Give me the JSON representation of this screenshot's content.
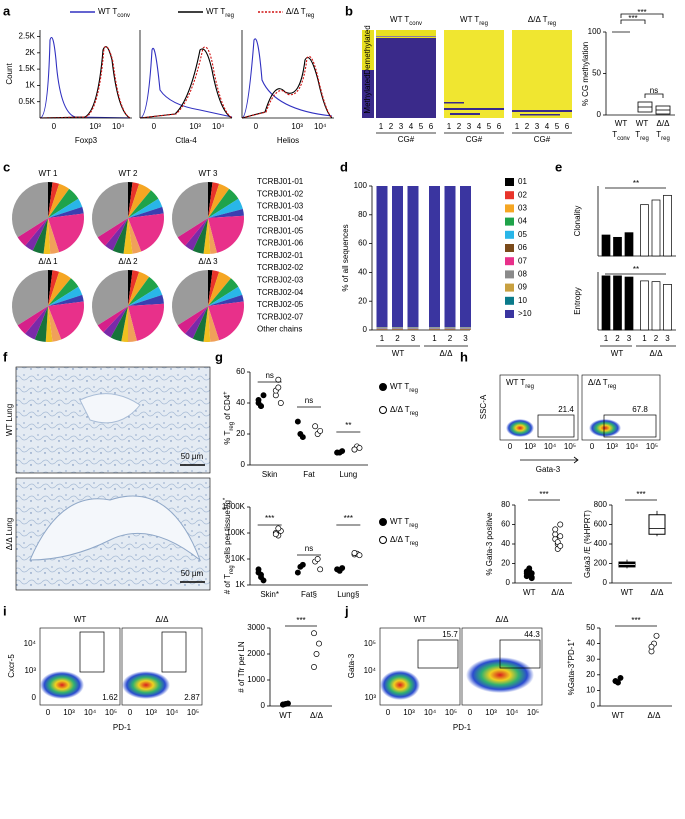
{
  "a": {
    "letter": "a",
    "legend": [
      [
        {
          "t": "WT T"
        },
        {
          "sub": "conv"
        }
      ],
      [
        {
          "t": "WT T"
        },
        {
          "sub": "reg"
        }
      ],
      [
        {
          "t": "Δ/Δ T"
        },
        {
          "sub": "reg"
        }
      ]
    ],
    "ylabel": "Count",
    "ylim": [
      0,
      2700
    ],
    "yticks": [
      {
        "value": 500,
        "label": "0.5K"
      },
      {
        "value": 1000,
        "label": "1K"
      },
      {
        "value": 1500,
        "label": "1.5K"
      },
      {
        "value": 2000,
        "label": "2K"
      },
      {
        "value": 2500,
        "label": "2.5K"
      }
    ],
    "xticks": [
      "0",
      "10³",
      "10⁴"
    ],
    "markers": [
      "Foxp3",
      "Ctla-4",
      "Helios"
    ]
  },
  "b": {
    "letter": "b",
    "titles": [
      [
        {
          "t": "WT T"
        },
        {
          "sub": "conv"
        }
      ],
      [
        {
          "t": "WT T"
        },
        {
          "sub": "reg"
        }
      ],
      [
        {
          "t": "Δ/Δ T"
        },
        {
          "sub": "reg"
        }
      ]
    ],
    "demethylated": "Demethylated",
    "methylated": "Methylated",
    "cg_numbers": [
      1,
      2,
      3,
      4,
      5,
      6
    ],
    "cg_label": "CG#",
    "ylabel": "% CG methylation",
    "ylim": [
      0,
      100
    ],
    "yticks": [
      0,
      50,
      100
    ],
    "groups": [
      {
        "line1": "WT",
        "line2": [
          {
            "t": "T"
          },
          {
            "sub": "conv"
          }
        ]
      },
      {
        "line1": "WT",
        "line2": [
          {
            "t": "T"
          },
          {
            "sub": "reg"
          }
        ]
      },
      {
        "line1": "Δ/Δ",
        "line2": [
          {
            "t": "T"
          },
          {
            "sub": "reg"
          }
        ]
      }
    ],
    "stars": [
      "***",
      "***",
      "ns"
    ]
  },
  "c": {
    "letter": "c",
    "pies": [
      {
        "title": "WT 1",
        "values": [
          2,
          3,
          5,
          6,
          4,
          3,
          22,
          4,
          3,
          5,
          4,
          5,
          34
        ]
      },
      {
        "title": "WT 2",
        "values": [
          2,
          3,
          6,
          5,
          4,
          3,
          21,
          4,
          4,
          5,
          4,
          5,
          34
        ]
      },
      {
        "title": "WT 3",
        "values": [
          2,
          3,
          5,
          6,
          5,
          3,
          22,
          3,
          3,
          5,
          4,
          5,
          34
        ]
      },
      {
        "title": "Δ/Δ 1",
        "values": [
          2,
          3,
          6,
          5,
          4,
          3,
          21,
          4,
          3,
          5,
          5,
          5,
          34
        ]
      },
      {
        "title": "Δ/Δ 2",
        "values": [
          2,
          3,
          5,
          6,
          4,
          4,
          22,
          4,
          3,
          5,
          4,
          4,
          34
        ]
      },
      {
        "title": "Δ/Δ 3",
        "values": [
          2,
          3,
          6,
          5,
          4,
          3,
          22,
          4,
          3,
          5,
          4,
          5,
          34
        ]
      }
    ],
    "legend": [
      {
        "name": "TCRBJ01-01",
        "color": "#000000"
      },
      {
        "name": "TCRBJ01-02",
        "color": "#e8342a"
      },
      {
        "name": "TCRBJ01-03",
        "color": "#f5a623"
      },
      {
        "name": "TCRBJ01-04",
        "color": "#1fa34a"
      },
      {
        "name": "TCRBJ01-05",
        "color": "#29b6e8"
      },
      {
        "name": "TCRBJ01-06",
        "color": "#3a3fb0"
      },
      {
        "name": "TCRBJ02-01",
        "color": "#e8308a"
      },
      {
        "name": "TCRBJ02-02",
        "color": "#f0a05a"
      },
      {
        "name": "TCRBJ02-03",
        "color": "#f0c020"
      },
      {
        "name": "TCRBJ02-04",
        "color": "#17733a"
      },
      {
        "name": "TCRBJ02-05",
        "color": "#7a2aa8"
      },
      {
        "name": "TCRBJ02-07",
        "color": "#d6208a"
      },
      {
        "name": "Other chains",
        "color": "#9b9b9b"
      }
    ]
  },
  "d": {
    "letter": "d",
    "ylabel": "% of all sequences",
    "ylim": [
      0,
      100
    ],
    "yticks": [
      0,
      20,
      40,
      60,
      80,
      100
    ],
    "bar_labels": [
      "1",
      "2",
      "3",
      "1",
      "2",
      "3"
    ],
    "groups": [
      "WT",
      "Δ/Δ"
    ],
    "series": [
      {
        "name": "01",
        "color": "#000000",
        "values": [
          0.2,
          0.2,
          0.2,
          0.2,
          0.2,
          0.2
        ]
      },
      {
        "name": "02",
        "color": "#e8342a",
        "values": [
          0.2,
          0.2,
          0.2,
          0.2,
          0.2,
          0.2
        ]
      },
      {
        "name": "03",
        "color": "#f5a623",
        "values": [
          0.2,
          0.2,
          0.2,
          0.2,
          0.2,
          0.2
        ]
      },
      {
        "name": "04",
        "color": "#1fa34a",
        "values": [
          0.2,
          0.2,
          0.2,
          0.2,
          0.2,
          0.2
        ]
      },
      {
        "name": "05",
        "color": "#29b6e8",
        "values": [
          0.2,
          0.2,
          0.2,
          0.2,
          0.2,
          0.2
        ]
      },
      {
        "name": "06",
        "color": "#7a4a1a",
        "values": [
          0.2,
          0.2,
          0.2,
          0.2,
          0.2,
          0.2
        ]
      },
      {
        "name": "07",
        "color": "#e8308a",
        "values": [
          0.2,
          0.2,
          0.2,
          0.2,
          0.2,
          0.2
        ]
      },
      {
        "name": "08",
        "color": "#8a8a8a",
        "values": [
          0.2,
          0.2,
          0.2,
          0.2,
          0.2,
          0.2
        ]
      },
      {
        "name": "09",
        "color": "#c8a040",
        "values": [
          0.2,
          0.2,
          0.2,
          0.2,
          0.2,
          0.2
        ]
      },
      {
        "name": "10",
        "color": "#0a7a8a",
        "values": [
          0.2,
          0.2,
          0.2,
          0.2,
          0.2,
          0.2
        ]
      },
      {
        "name": ">10",
        "color": "#3a35a0",
        "values": [
          98,
          98,
          98,
          98,
          98,
          98
        ]
      }
    ]
  },
  "e": {
    "letter": "e",
    "clonality": {
      "ylabel": "Clonality",
      "values": [
        0.045,
        0.04,
        0.05,
        0.11,
        0.12,
        0.13
      ],
      "ylim": [
        0,
        0.15
      ]
    },
    "entropy": {
      "ylabel": "Entropy",
      "values": [
        14,
        14,
        13.7,
        12.7,
        12.5,
        11.8
      ],
      "ylim": [
        0,
        15
      ]
    },
    "bar_colors": [
      "#000000",
      "#000000",
      "#000000",
      "#ffffff",
      "#ffffff",
      "#ffffff"
    ],
    "bar_labels": [
      "1",
      "2",
      "3",
      "1",
      "2",
      "3"
    ],
    "groups": [
      "WT",
      "Δ/Δ"
    ],
    "stars": [
      "**",
      "**"
    ]
  },
  "f": {
    "letter": "f",
    "labels": [
      "WT Lung",
      "Δ/Δ Lung"
    ],
    "scale": "50 µm"
  },
  "g": {
    "letter": "g",
    "legend": [
      [
        {
          "t": "WT T"
        },
        {
          "sub": "reg"
        }
      ],
      [
        {
          "t": "Δ/Δ T"
        },
        {
          "sub": "reg"
        }
      ]
    ],
    "top": {
      "ylabel": [
        {
          "t": "% T"
        },
        {
          "sub": "reg"
        },
        {
          "t": " of CD4"
        },
        {
          "sup": "+"
        }
      ],
      "ylim": [
        0,
        60
      ],
      "yticks": [
        0,
        20,
        40,
        60
      ],
      "categories": [
        "Skin",
        "Fat",
        "Lung"
      ],
      "stars": [
        "ns",
        "ns",
        "**"
      ],
      "wt": [
        [
          40,
          38,
          45,
          42,
          38
        ],
        [
          28,
          20,
          18
        ],
        [
          8,
          8,
          9,
          8
        ]
      ],
      "ko": [
        [
          45,
          55,
          40,
          48,
          50
        ],
        [
          25,
          20,
          22
        ],
        [
          10,
          12,
          11,
          10
        ]
      ]
    },
    "bottom": {
      "ylabel": [
        {
          "t": "# of T"
        },
        {
          "sub": "reg"
        },
        {
          "t": " cells per tissue"
        },
        {
          "sup": "§"
        },
        {
          "t": "/g"
        },
        {
          "sup": "*"
        }
      ],
      "log": true,
      "ylim": [
        1000,
        1000000
      ],
      "yticks": [
        {
          "value": 1000,
          "label": "1K"
        },
        {
          "value": 10000,
          "label": "10K"
        },
        {
          "value": 100000,
          "label": "100K"
        },
        {
          "value": 1000000,
          "label": "1000K"
        }
      ],
      "categories": [
        "Skin*",
        "Fat§",
        "Lung§"
      ],
      "stars": [
        "***",
        "ns",
        "***"
      ],
      "wt": [
        [
          3000,
          2000,
          1500,
          4000,
          2500
        ],
        [
          3000,
          5000,
          6000
        ],
        [
          4000,
          3500,
          4500,
          4000
        ]
      ],
      "ko": [
        [
          100000,
          80000,
          120000,
          90000,
          150000
        ],
        [
          8000,
          10000,
          4000
        ],
        [
          15000,
          16000,
          14000,
          17000
        ]
      ]
    }
  },
  "h": {
    "letter": "h",
    "titles": [
      [
        {
          "t": "WT T"
        },
        {
          "sub": "reg"
        }
      ],
      [
        {
          "t": "Δ/Δ T"
        },
        {
          "sub": "reg"
        }
      ]
    ],
    "ylabel": "SSC-A",
    "xlabel": "Gata-3",
    "gates": [
      "21.4",
      "67.8"
    ],
    "xticks": [
      "0",
      "10³",
      "10⁴",
      "10⁵"
    ],
    "dots": {
      "ylabel": "% Gata-3 positive",
      "ylim": [
        0,
        80
      ],
      "yticks": [
        0,
        20,
        40,
        60,
        80
      ],
      "categories": [
        "WT",
        "Δ/Δ"
      ],
      "stars": "***",
      "wt": [
        10,
        8,
        5,
        12,
        15,
        10,
        7,
        13,
        6
      ],
      "ko": [
        45,
        40,
        60,
        50,
        35,
        48,
        55,
        42,
        38
      ]
    },
    "box": {
      "ylabel": [
        {
          "t": "Gata3 "
        },
        {
          "t": "/E (%HPRT)"
        }
      ],
      "ylim": [
        0,
        800
      ],
      "yticks": [
        0,
        200,
        400,
        600,
        800
      ],
      "categories": [
        "WT",
        "Δ/Δ"
      ],
      "stars": "***",
      "boxes": [
        {
          "min": 150,
          "q1": 165,
          "median": 190,
          "q3": 215,
          "max": 240
        },
        {
          "min": 480,
          "q1": 500,
          "median": 560,
          "q3": 700,
          "max": 740
        }
      ]
    }
  },
  "i": {
    "letter": "i",
    "titles": [
      "WT",
      "Δ/Δ"
    ],
    "ylabel": "Cxcr-5",
    "xlabel": "PD-1",
    "gates": [
      "1.62",
      "2.87"
    ],
    "xticks": [
      "0",
      "10³",
      "10⁴",
      "10⁵"
    ],
    "yflow": [
      "0",
      "10³",
      "10⁴"
    ],
    "dots": {
      "ylabel": "# of Tfr per LN",
      "ylim": [
        0,
        3000
      ],
      "yticks": [
        0,
        1000,
        2000,
        3000
      ],
      "categories": [
        "WT",
        "Δ/Δ"
      ],
      "stars": "***",
      "wt": [
        50,
        80,
        100,
        60
      ],
      "ko": [
        1500,
        2000,
        2400,
        2800
      ]
    }
  },
  "j": {
    "letter": "j",
    "titles": [
      "WT",
      "Δ/Δ"
    ],
    "ylabel": "Gata-3",
    "xlabel": "PD-1",
    "gates": [
      "15.7",
      "44.3"
    ],
    "xticks": [
      "0",
      "10³",
      "10⁴",
      "10⁵"
    ],
    "yflow": [
      "10³",
      "10⁴",
      "10⁵"
    ],
    "dots": {
      "ylabel": [
        {
          "t": "%Gata-3"
        },
        {
          "sup": "+"
        },
        {
          "t": "PD-1"
        },
        {
          "sup": "+"
        }
      ],
      "ylim": [
        0,
        50
      ],
      "yticks": [
        0,
        10,
        20,
        30,
        40,
        50
      ],
      "categories": [
        "WT",
        "Δ/Δ"
      ],
      "stars": "***",
      "wt": [
        16,
        15,
        18,
        16
      ],
      "ko": [
        35,
        40,
        45,
        38
      ]
    }
  }
}
